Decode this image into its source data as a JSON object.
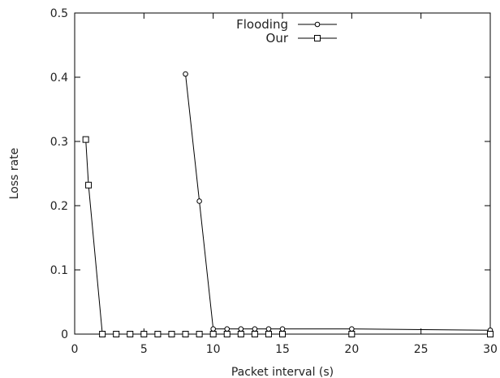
{
  "chart_data": {
    "type": "line",
    "title": "",
    "xlabel": "Packet interval (s)",
    "ylabel": "Loss rate",
    "xlim": [
      0,
      30
    ],
    "ylim": [
      0,
      0.5
    ],
    "xticks": [
      "0",
      "5",
      "10",
      "15",
      "20",
      "25",
      "30"
    ],
    "yticks": [
      "0",
      "0.1",
      "0.2",
      "0.3",
      "0.4",
      "0.5"
    ],
    "grid": false,
    "legend_position": "top-center",
    "series": [
      {
        "name": "Flooding",
        "marker": "circle",
        "color": "#000000",
        "x": [
          8,
          9,
          10,
          11,
          12,
          13,
          14,
          15,
          20,
          30
        ],
        "y": [
          0.405,
          0.207,
          0.008,
          0.008,
          0.008,
          0.008,
          0.008,
          0.008,
          0.008,
          0.006
        ]
      },
      {
        "name": "Our",
        "marker": "square",
        "color": "#000000",
        "x": [
          0.8,
          1,
          2,
          3,
          4,
          5,
          6,
          7,
          8,
          9,
          10,
          11,
          12,
          13,
          14,
          15,
          20,
          30
        ],
        "y": [
          0.303,
          0.232,
          0,
          0,
          0,
          0,
          0,
          0,
          0,
          0,
          0,
          0,
          0,
          0,
          0,
          0,
          0,
          0
        ]
      }
    ]
  }
}
